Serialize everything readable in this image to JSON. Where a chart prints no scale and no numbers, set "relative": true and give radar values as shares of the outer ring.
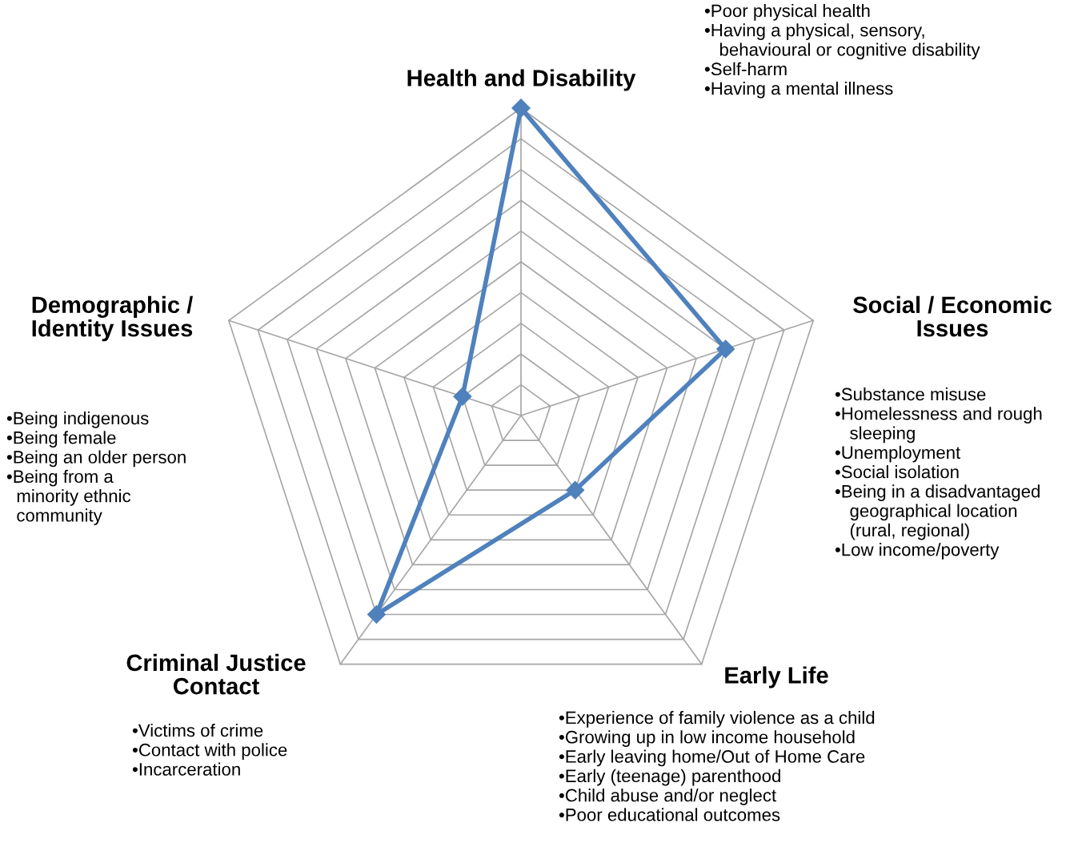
{
  "chart_data": {
    "type": "radar",
    "relative": true,
    "grid": true,
    "marker": "diamond",
    "line_style": "solid",
    "categories": [
      "Health and Disability",
      "Social / Economic\nIssues",
      "Early Life",
      "Criminal Justice\nContact",
      "Demographic /\nIdentity Issues"
    ],
    "series": [
      {
        "color": "#4f81bd",
        "values": [
          1.0,
          0.7,
          0.3,
          0.8,
          0.2
        ]
      }
    ],
    "annotations": [
      "•Poor physical health\n•Having a physical, sensory,\n   behavioural or cognitive disability\n•Self-harm\n•Having a mental illness",
      "•Substance misuse\n•Homelessness and rough\n   sleeping\n•Unemployment\n•Social isolation\n•Being in a disadvantaged\n   geographical location\n   (rural, regional)\n•Low income/poverty",
      "•Experience of family violence as a child\n•Growing up in low income household\n•Early leaving home/Out of Home Care\n•Early (teenage) parenthood\n•Child abuse and/or neglect\n•Poor educational outcomes",
      "•Victims of crime\n•Contact with police\n•Incarceration",
      "•Being indigenous\n•Being female\n•Being an older person\n•Being from a\n  minority ethnic\n  community"
    ]
  }
}
